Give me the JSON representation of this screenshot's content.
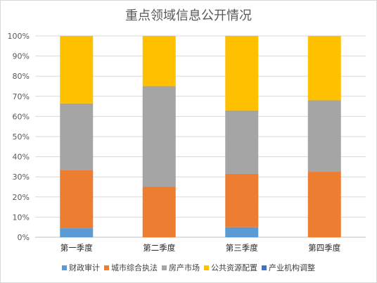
{
  "chart_data": {
    "type": "bar",
    "stacked": true,
    "normalized": true,
    "title": "重点领域信息公开情况",
    "xlabel": "",
    "ylabel": "",
    "categories": [
      "第一季度",
      "第二季度",
      "第三季度",
      "第四季度"
    ],
    "yticks": [
      "0%",
      "10%",
      "20%",
      "30%",
      "40%",
      "50%",
      "60%",
      "70%",
      "80%",
      "90%",
      "100%"
    ],
    "ylim": [
      0,
      100
    ],
    "grid": true,
    "legend_position": "bottom",
    "series": [
      {
        "name": "财政审计",
        "color": "#5b9bd5",
        "values": [
          4.5,
          0,
          5,
          0
        ]
      },
      {
        "name": "城市综合执法",
        "color": "#ed7d31",
        "values": [
          29,
          25,
          26.5,
          32.5
        ]
      },
      {
        "name": "房产市场",
        "color": "#a5a5a5",
        "values": [
          33,
          50,
          31.5,
          35.5
        ]
      },
      {
        "name": "公共资源配置",
        "color": "#ffc000",
        "values": [
          33.5,
          25,
          37,
          32
        ]
      },
      {
        "name": "产业机构调整",
        "color": "#4472c4",
        "values": [
          0,
          0,
          0,
          0
        ]
      }
    ]
  }
}
